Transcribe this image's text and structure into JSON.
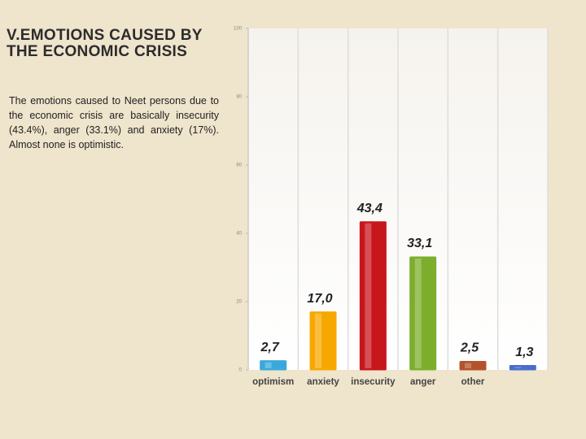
{
  "title": "V.EMOTIONS CAUSED BY THE ECONOMIC CRISIS",
  "body": "The emotions caused to Neet persons due to the economic crisis are basically insecurity (43.4%), anger (33.1%) and anxiety (17%). Almost none is optimistic.",
  "chart_data": {
    "type": "bar",
    "categories": [
      "optimism",
      "anxiety",
      "insecurity",
      "anger",
      "other",
      null
    ],
    "values": [
      2.7,
      17.0,
      43.4,
      33.1,
      2.5,
      1.3
    ],
    "value_labels": [
      "2,7",
      "17,0",
      "43,4",
      "33,1",
      "2,5",
      "1,3"
    ],
    "colors": [
      "#3aa8dc",
      "#f7a800",
      "#c8161d",
      "#7cae2b",
      "#b4532b",
      "#4a6ccc"
    ],
    "ylim": [
      0,
      100
    ],
    "yticks": [
      0,
      20,
      40,
      60,
      80,
      100
    ],
    "grid": true
  }
}
